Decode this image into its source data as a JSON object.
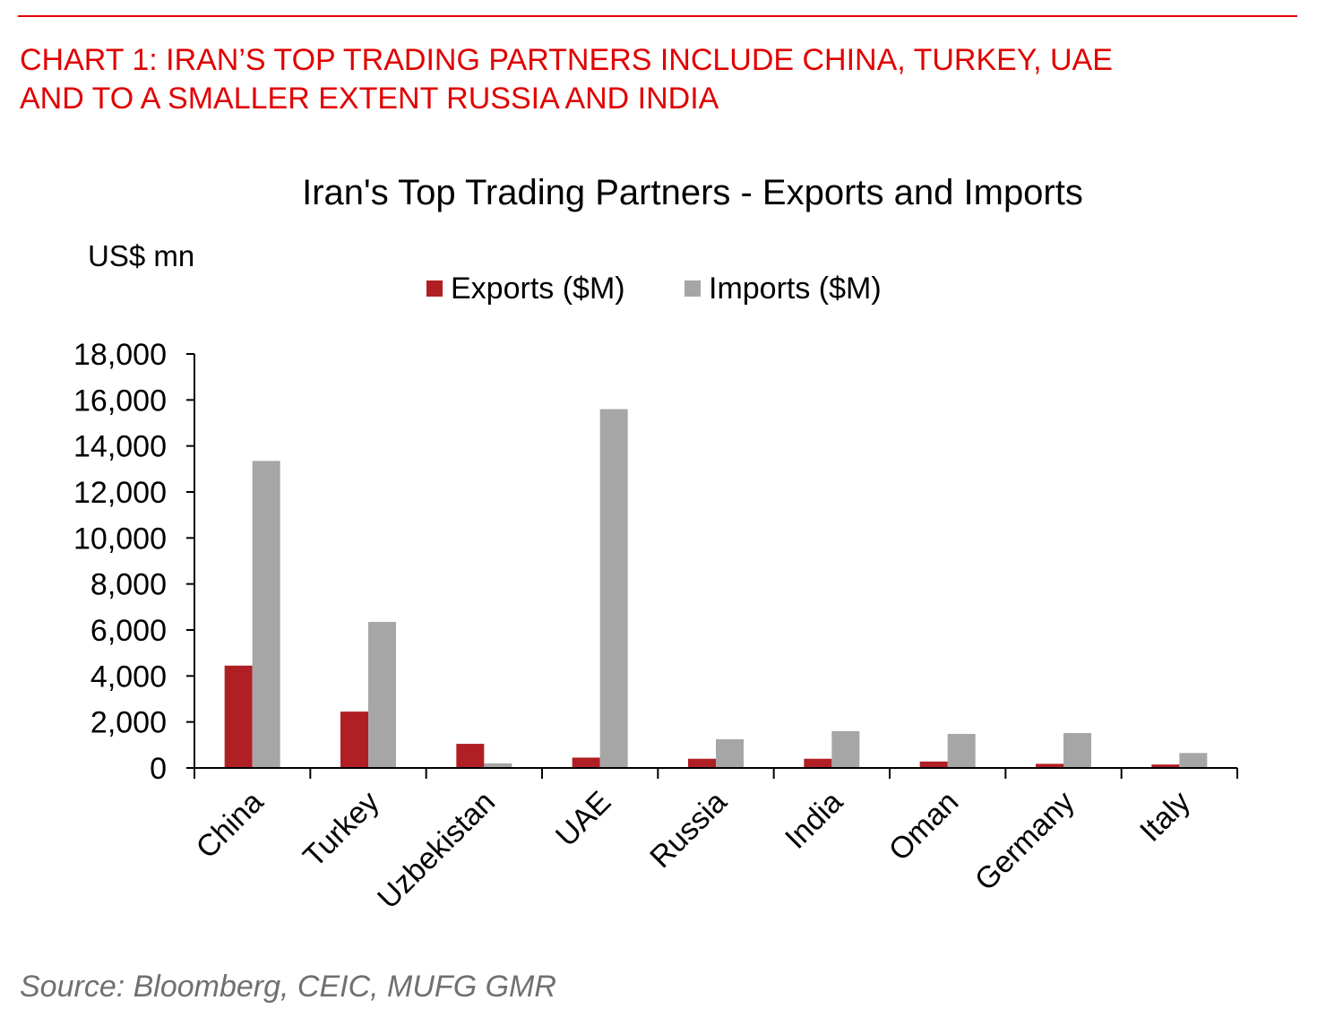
{
  "heading": {
    "line1": "CHART 1: IRAN’S TOP TRADING PARTNERS INCLUDE CHINA, TURKEY, UAE",
    "line2": "AND TO A SMALLER EXTENT RUSSIA AND INDIA"
  },
  "source": "Source: Bloomberg, CEIC, MUFG GMR",
  "colors": {
    "heading": "#e00000",
    "exports": "#b01f24",
    "imports": "#a6a6a6",
    "axis": "#000000",
    "source": "#707070"
  },
  "chart_data": {
    "type": "bar",
    "title": "Iran's Top Trading Partners - Exports and Imports",
    "ylabel": "US$ mn",
    "xlabel": "",
    "ylim": [
      0,
      18000
    ],
    "yticks": [
      0,
      2000,
      4000,
      6000,
      8000,
      10000,
      12000,
      14000,
      16000,
      18000
    ],
    "ytick_labels": [
      "0",
      "2,000",
      "4,000",
      "6,000",
      "8,000",
      "10,000",
      "12,000",
      "14,000",
      "16,000",
      "18,000"
    ],
    "grid": false,
    "legend": "top-center",
    "categories": [
      "China",
      "Turkey",
      "Uzbekistan",
      "UAE",
      "Russia",
      "India",
      "Oman",
      "Germany",
      "Italy"
    ],
    "series": [
      {
        "name": "Exports ($M)",
        "color": "#b01f24",
        "values": [
          4450,
          2450,
          1050,
          450,
          400,
          400,
          280,
          180,
          150
        ]
      },
      {
        "name": "Imports ($M)",
        "color": "#a6a6a6",
        "values": [
          13350,
          6350,
          200,
          15600,
          1250,
          1600,
          1480,
          1520,
          650
        ]
      }
    ]
  }
}
